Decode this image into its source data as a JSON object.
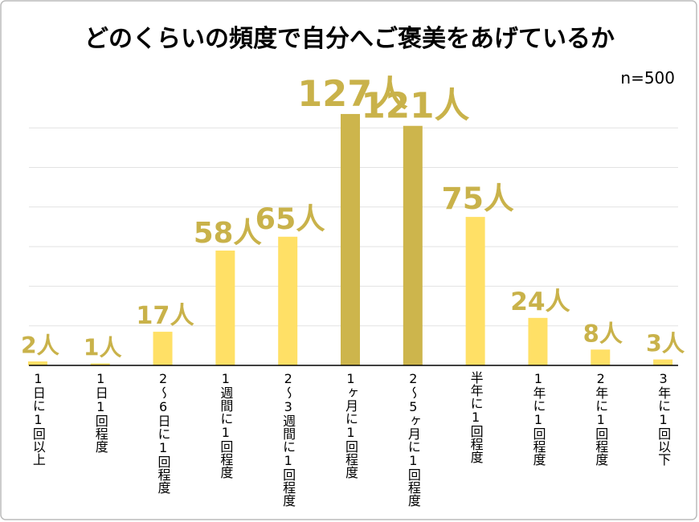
{
  "chart_data": {
    "type": "bar",
    "title": "どのくらいの頻度で自分へご褒美をあげているか",
    "annotation": "n=500",
    "categories": [
      "1日に1回以上",
      "1日1回程度",
      "2〜6日に1回程度",
      "1週間に1回程度",
      "2〜3週間に1回程度",
      "1ヶ月に1回程度",
      "2〜5ヶ月に1回程度",
      "半年に1回程度",
      "1年に1回程度",
      "2年に1回程度",
      "3年に1回以下"
    ],
    "values": [
      2,
      1,
      17,
      58,
      65,
      127,
      121,
      75,
      24,
      8,
      3
    ],
    "value_labels": [
      "2人",
      "1人",
      "17人",
      "58人",
      "65人",
      "127人",
      "121人",
      "75人",
      "24人",
      "8人",
      "3人"
    ],
    "colors": [
      "#ffe066",
      "#ffe066",
      "#ffe066",
      "#ffe066",
      "#ffe066",
      "#cdb54c",
      "#cdb54c",
      "#ffe066",
      "#ffe066",
      "#ffe066",
      "#ffe066"
    ],
    "label_color": "#c9b24a",
    "ylim": [
      0,
      140
    ],
    "yticks": [
      0,
      20,
      40,
      60,
      80,
      100,
      120
    ],
    "grid": true
  }
}
